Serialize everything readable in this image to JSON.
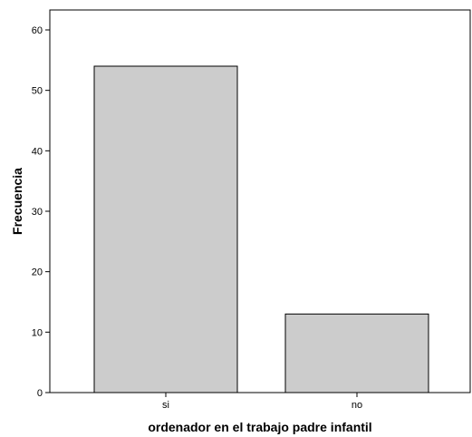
{
  "chart_data": {
    "type": "bar",
    "categories": [
      "si",
      "no"
    ],
    "values": [
      54,
      13
    ],
    "xlabel": "ordenador en el trabajo padre infantil",
    "ylabel": "Frecuencia",
    "ylim": [
      0,
      60
    ],
    "yticks": [
      0,
      10,
      20,
      30,
      40,
      50,
      60
    ],
    "grid": false,
    "colors": {
      "bar_fill": "#cccccc",
      "bar_stroke": "#000000",
      "frame": "#000000",
      "background": "#ffffff"
    }
  }
}
